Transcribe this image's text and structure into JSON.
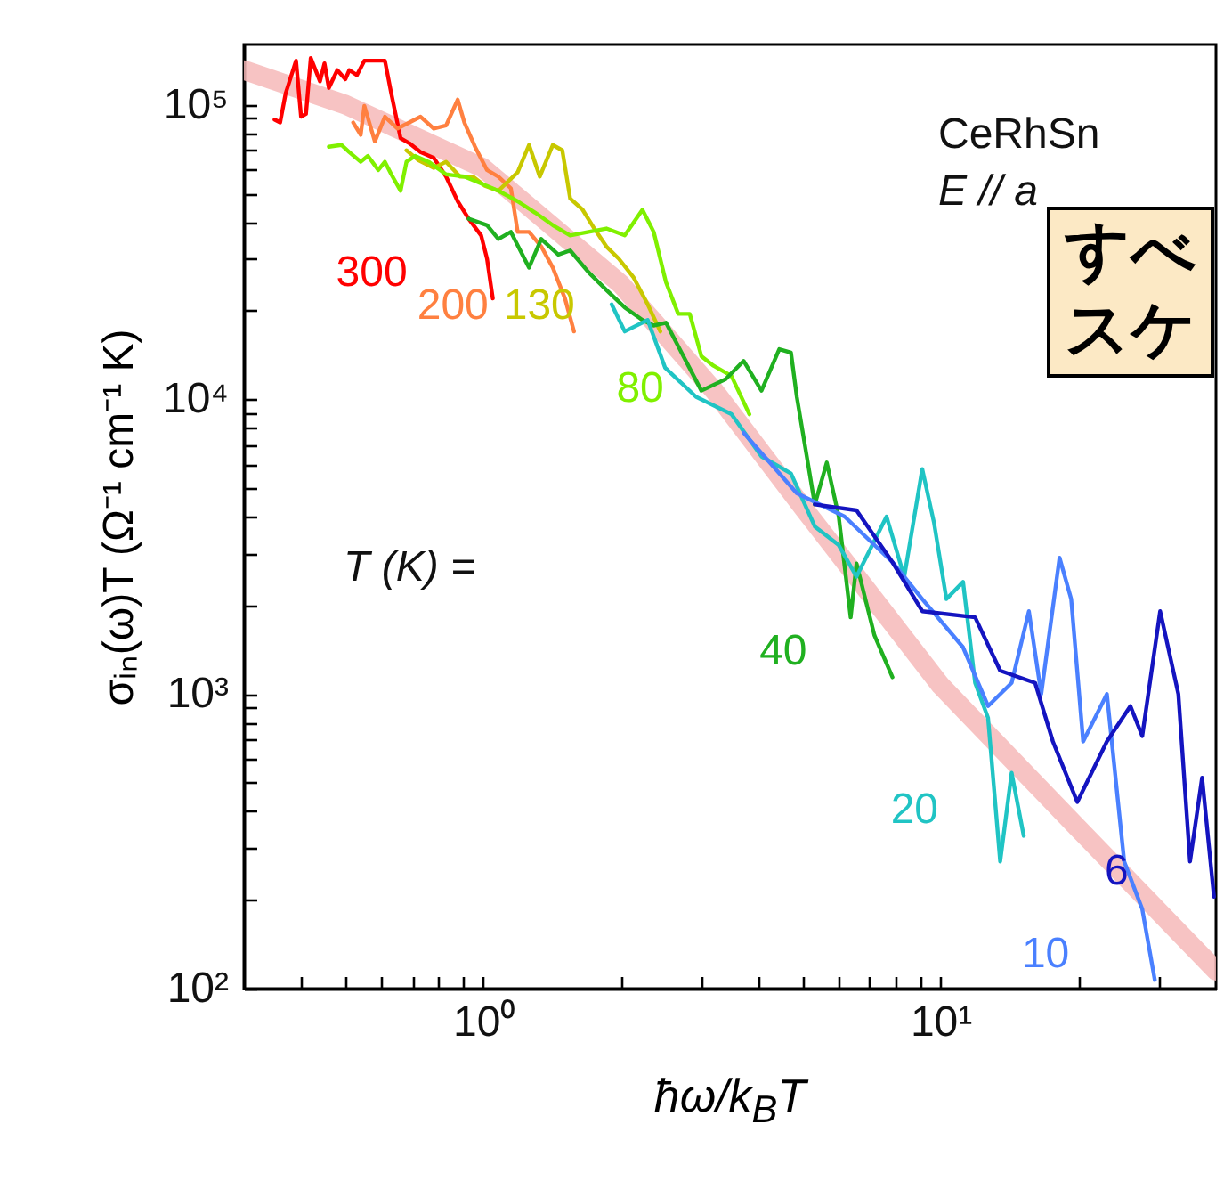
{
  "chart_data": {
    "type": "line",
    "log": "xy",
    "xlabel": "ħω/k$_{B}$T",
    "ylabel": "σᵢₙ(ω)T (Ω⁻¹ cm⁻¹ K)",
    "xlim": [
      0.3,
      40
    ],
    "ylim": [
      100,
      160000
    ],
    "xticks": [
      {
        "value": 0.4,
        "label": null
      },
      {
        "value": 0.5,
        "label": null
      },
      {
        "value": 0.6,
        "label": null
      },
      {
        "value": 0.7,
        "label": null
      },
      {
        "value": 0.8,
        "label": null
      },
      {
        "value": 0.9,
        "label": null
      },
      {
        "value": 1,
        "label": "10⁰"
      },
      {
        "value": 2,
        "label": null
      },
      {
        "value": 3,
        "label": null
      },
      {
        "value": 4,
        "label": null
      },
      {
        "value": 5,
        "label": null
      },
      {
        "value": 6,
        "label": null
      },
      {
        "value": 7,
        "label": null
      },
      {
        "value": 8,
        "label": null
      },
      {
        "value": 9,
        "label": null
      },
      {
        "value": 10,
        "label": "10¹"
      },
      {
        "value": 20,
        "label": null
      },
      {
        "value": 30,
        "label": null
      }
    ],
    "yticks": [
      {
        "value": 100,
        "label": "10²"
      },
      {
        "value": 200,
        "label": null
      },
      {
        "value": 300,
        "label": null
      },
      {
        "value": 400,
        "label": null
      },
      {
        "value": 500,
        "label": null
      },
      {
        "value": 600,
        "label": null
      },
      {
        "value": 700,
        "label": null
      },
      {
        "value": 800,
        "label": null
      },
      {
        "value": 900,
        "label": null
      },
      {
        "value": 1000,
        "label": "10³"
      },
      {
        "value": 2000,
        "label": null
      },
      {
        "value": 3000,
        "label": null
      },
      {
        "value": 4000,
        "label": null
      },
      {
        "value": 5000,
        "label": null
      },
      {
        "value": 6000,
        "label": null
      },
      {
        "value": 7000,
        "label": null
      },
      {
        "value": 8000,
        "label": null
      },
      {
        "value": 9000,
        "label": null
      },
      {
        "value": 10000,
        "label": "10⁴"
      },
      {
        "value": 20000,
        "label": null
      },
      {
        "value": 30000,
        "label": null
      },
      {
        "value": 40000,
        "label": null
      },
      {
        "value": 50000,
        "label": null
      },
      {
        "value": 60000,
        "label": null
      },
      {
        "value": 70000,
        "label": null
      },
      {
        "value": 80000,
        "label": null
      },
      {
        "value": 90000,
        "label": null
      },
      {
        "value": 100000,
        "label": "10⁵"
      }
    ],
    "annotations": [
      "CeRhSn",
      "E // a",
      "T (K) =",
      "すべ",
      "スケ"
    ],
    "series": [
      {
        "type": "line",
        "color": "#f6b8b8",
        "x": [
          0.3,
          0.5,
          1,
          2,
          3.2,
          5,
          10,
          20,
          40
        ],
        "values": [
          131000,
          100000,
          61000,
          24600,
          10700,
          4300,
          1070,
          350,
          115
        ]
      },
      {
        "name": "300",
        "color": "#ff0000",
        "x": [
          0.35,
          0.36,
          0.37,
          0.39,
          0.4,
          0.41,
          0.42,
          0.44,
          0.45,
          0.46,
          0.48,
          0.5,
          0.51,
          0.53,
          0.55,
          0.61,
          0.63,
          0.66,
          0.69,
          0.73,
          0.78,
          0.83,
          0.88,
          0.93,
          0.99,
          1.02,
          1.05
        ],
        "values": [
          89000,
          87000,
          109000,
          141000,
          91000,
          93000,
          144000,
          120000,
          138000,
          114000,
          131000,
          122000,
          131000,
          126000,
          141000,
          141000,
          109000,
          77000,
          74000,
          69000,
          66000,
          57000,
          47000,
          41000,
          36000,
          30000,
          22000
        ]
      },
      {
        "name": "200",
        "color": "#ff8040",
        "x": [
          0.52,
          0.54,
          0.55,
          0.58,
          0.61,
          0.65,
          0.69,
          0.73,
          0.78,
          0.83,
          0.88,
          0.91,
          0.96,
          1.02,
          1.08,
          1.15,
          1.19,
          1.26,
          1.34,
          1.42,
          1.51,
          1.58
        ],
        "values": [
          87000,
          79000,
          99000,
          75000,
          91000,
          83000,
          87000,
          91000,
          83000,
          85000,
          104000,
          87000,
          72000,
          60000,
          57000,
          52000,
          37000,
          37000,
          33000,
          28000,
          22000,
          17000
        ]
      },
      {
        "name": "130",
        "color": "#c8c800",
        "x": [
          0.68,
          0.72,
          0.78,
          0.83,
          0.89,
          0.95,
          1.01,
          1.08,
          1.19,
          1.26,
          1.33,
          1.42,
          1.49,
          1.55,
          1.65,
          1.75,
          1.86,
          1.98,
          2.13,
          2.29,
          2.44
        ],
        "values": [
          70000,
          65000,
          61000,
          64000,
          57000,
          57000,
          53000,
          51000,
          59000,
          73000,
          57000,
          73000,
          70000,
          48000,
          44000,
          38000,
          33000,
          30000,
          26000,
          21000,
          17000
        ]
      },
      {
        "name": "80",
        "color": "#80f000",
        "x": [
          0.46,
          0.49,
          0.51,
          0.54,
          0.56,
          0.59,
          0.61,
          0.63,
          0.66,
          0.68,
          0.71,
          0.76,
          0.83,
          0.91,
          0.99,
          1.08,
          1.19,
          1.3,
          1.42,
          1.55,
          1.7,
          1.86,
          2.04,
          2.23,
          2.36,
          2.51,
          2.67,
          2.83,
          3.0,
          3.19,
          3.49,
          3.82
        ],
        "values": [
          72000,
          73000,
          69000,
          64000,
          67000,
          60000,
          64000,
          58000,
          51000,
          64000,
          67000,
          64000,
          58000,
          57000,
          54000,
          51000,
          47000,
          43000,
          39000,
          36000,
          37000,
          38000,
          36000,
          44000,
          37000,
          25000,
          19500,
          19500,
          14000,
          13000,
          12000,
          8900
        ]
      },
      {
        "name": "40",
        "color": "#20b020",
        "x": [
          0.93,
          1.02,
          1.08,
          1.15,
          1.26,
          1.34,
          1.46,
          1.55,
          1.7,
          1.86,
          2.04,
          2.23,
          2.36,
          2.51,
          3.0,
          3.39,
          3.71,
          4.06,
          4.44,
          4.71,
          4.85,
          5.31,
          5.64,
          5.99,
          6.36,
          6.55,
          7.17,
          7.85
        ],
        "values": [
          41000,
          39000,
          35000,
          37000,
          28000,
          35000,
          31000,
          32000,
          27000,
          23500,
          20500,
          18600,
          17800,
          18200,
          10700,
          11700,
          13500,
          10700,
          14800,
          14400,
          10200,
          4400,
          6100,
          4000,
          1820,
          2770,
          1580,
          1140
        ]
      },
      {
        "name": "20",
        "color": "#20c4c4",
        "x": [
          1.91,
          2.04,
          2.29,
          2.5,
          2.92,
          3.49,
          4.06,
          4.71,
          5.31,
          5.99,
          6.55,
          7.62,
          8.33,
          9.12,
          9.68,
          10.3,
          11.2,
          11.9,
          12.7,
          13.5,
          14.3,
          15.2
        ],
        "values": [
          21000,
          17000,
          18600,
          12800,
          10200,
          8900,
          6400,
          5600,
          3700,
          3200,
          2500,
          4000,
          2500,
          5800,
          3800,
          2100,
          2400,
          1090,
          830,
          270,
          540,
          330
        ]
      },
      {
        "name": "10",
        "color": "#4a80ff",
        "x": [
          3.71,
          4.85,
          6.17,
          7.85,
          9.12,
          11.2,
          12.7,
          14.3,
          15.6,
          16.6,
          18.2,
          19.3,
          20.5,
          23.1,
          25.2,
          27.6,
          29.4
        ],
        "values": [
          7700,
          4800,
          4000,
          2800,
          2100,
          1440,
          910,
          1090,
          1910,
          1000,
          2900,
          2100,
          690,
          1000,
          270,
          186,
          107
        ]
      },
      {
        "name": "6",
        "color": "#1414c0",
        "x": [
          5.31,
          6.55,
          7.85,
          9.12,
          11.9,
          13.5,
          16.1,
          17.6,
          19.9,
          23.1,
          26,
          27.6,
          30.2,
          33.1,
          35.1,
          37.3,
          39.6
        ],
        "values": [
          4400,
          4200,
          2800,
          1910,
          1820,
          1200,
          1090,
          690,
          430,
          690,
          910,
          720,
          1910,
          1000,
          270,
          520,
          205
        ]
      }
    ]
  }
}
